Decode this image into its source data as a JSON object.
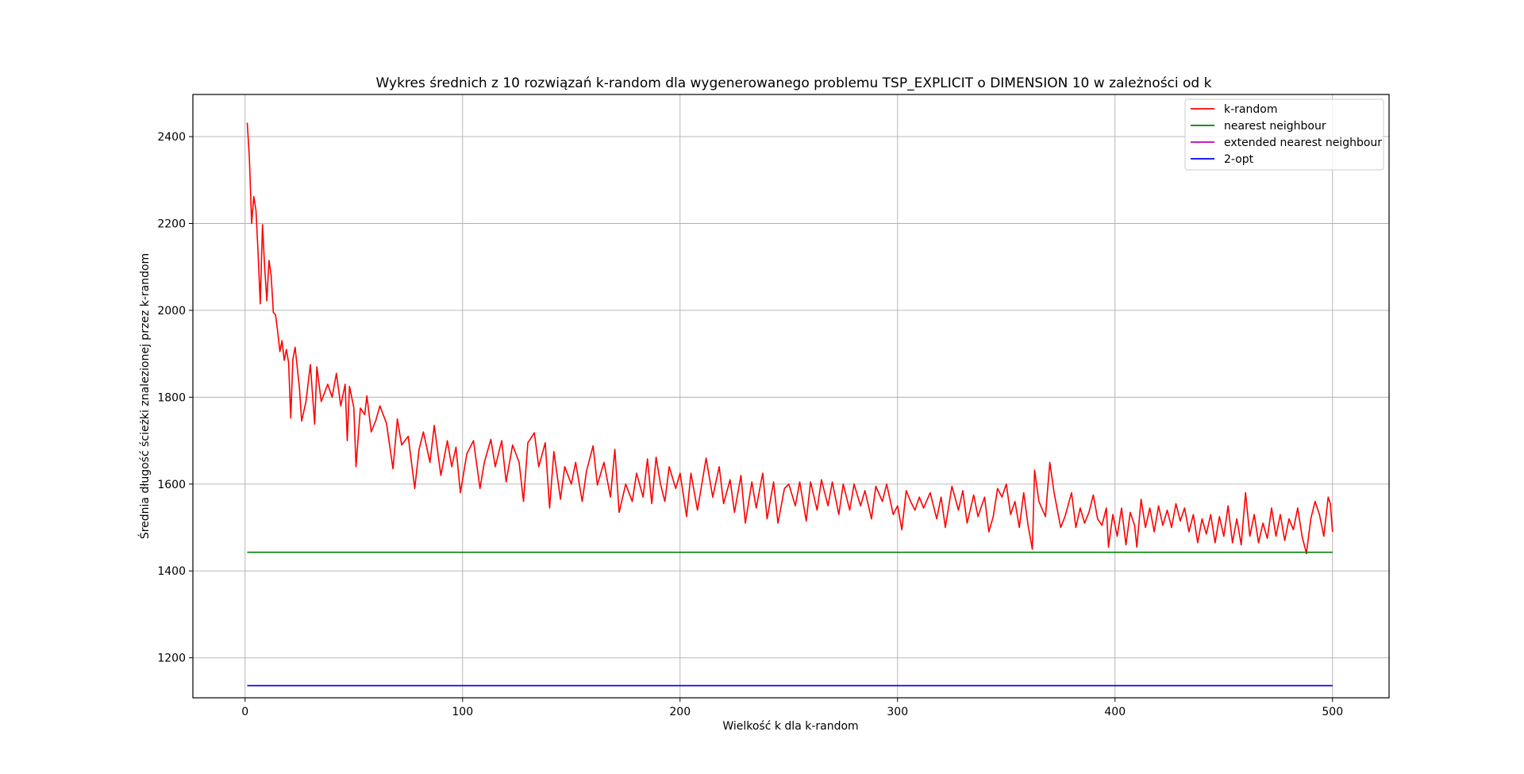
{
  "chart_data": {
    "type": "line",
    "title": "Wykres średnich z 10 rozwiązań k-random dla wygenerowanego problemu TSP_EXPLICIT o DIMENSION 10 w zależności od k",
    "xlabel": "Wielkość k dla k-random",
    "ylabel": "Średnia długość ścieżki znalezionej przez k-random",
    "xlim": [
      -24,
      526
    ],
    "ylim": [
      1108,
      2497
    ],
    "xticks": [
      0,
      100,
      200,
      300,
      400,
      500
    ],
    "yticks": [
      1200,
      1400,
      1600,
      1800,
      2000,
      2200,
      2400
    ],
    "grid": true,
    "legend_position": "top-right",
    "series": [
      {
        "name": "k-random",
        "color": "#ff0000",
        "x_start": 1,
        "x_end": 500,
        "anchors": [
          [
            1,
            2432
          ],
          [
            2,
            2350
          ],
          [
            3,
            2200
          ],
          [
            4,
            2262
          ],
          [
            5,
            2230
          ],
          [
            6,
            2130
          ],
          [
            7,
            2015
          ],
          [
            8,
            2197
          ],
          [
            9,
            2100
          ],
          [
            10,
            2022
          ],
          [
            11,
            2115
          ],
          [
            12,
            2080
          ],
          [
            13,
            1995
          ],
          [
            14,
            1990
          ],
          [
            15,
            1950
          ],
          [
            16,
            1905
          ],
          [
            17,
            1930
          ],
          [
            18,
            1885
          ],
          [
            19,
            1910
          ],
          [
            20,
            1880
          ],
          [
            21,
            1752
          ],
          [
            22,
            1888
          ],
          [
            23,
            1915
          ],
          [
            25,
            1820
          ],
          [
            26,
            1745
          ],
          [
            28,
            1790
          ],
          [
            30,
            1875
          ],
          [
            32,
            1738
          ],
          [
            33,
            1870
          ],
          [
            35,
            1790
          ],
          [
            38,
            1830
          ],
          [
            40,
            1800
          ],
          [
            42,
            1855
          ],
          [
            44,
            1780
          ],
          [
            46,
            1830
          ],
          [
            47,
            1700
          ],
          [
            48,
            1825
          ],
          [
            50,
            1775
          ],
          [
            51,
            1640
          ],
          [
            53,
            1775
          ],
          [
            55,
            1760
          ],
          [
            56,
            1803
          ],
          [
            58,
            1720
          ],
          [
            60,
            1745
          ],
          [
            62,
            1780
          ],
          [
            65,
            1740
          ],
          [
            68,
            1635
          ],
          [
            70,
            1750
          ],
          [
            72,
            1690
          ],
          [
            75,
            1710
          ],
          [
            78,
            1590
          ],
          [
            80,
            1680
          ],
          [
            82,
            1720
          ],
          [
            85,
            1650
          ],
          [
            87,
            1735
          ],
          [
            90,
            1620
          ],
          [
            93,
            1700
          ],
          [
            95,
            1640
          ],
          [
            97,
            1685
          ],
          [
            99,
            1580
          ],
          [
            102,
            1670
          ],
          [
            105,
            1700
          ],
          [
            108,
            1590
          ],
          [
            110,
            1650
          ],
          [
            113,
            1703
          ],
          [
            115,
            1640
          ],
          [
            118,
            1700
          ],
          [
            120,
            1605
          ],
          [
            123,
            1690
          ],
          [
            126,
            1650
          ],
          [
            128,
            1560
          ],
          [
            130,
            1695
          ],
          [
            133,
            1718
          ],
          [
            135,
            1640
          ],
          [
            138,
            1695
          ],
          [
            140,
            1545
          ],
          [
            142,
            1675
          ],
          [
            145,
            1565
          ],
          [
            147,
            1640
          ],
          [
            150,
            1600
          ],
          [
            152,
            1650
          ],
          [
            155,
            1560
          ],
          [
            157,
            1630
          ],
          [
            160,
            1688
          ],
          [
            162,
            1598
          ],
          [
            165,
            1650
          ],
          [
            168,
            1570
          ],
          [
            170,
            1680
          ],
          [
            172,
            1535
          ],
          [
            175,
            1600
          ],
          [
            178,
            1560
          ],
          [
            180,
            1625
          ],
          [
            183,
            1570
          ],
          [
            185,
            1658
          ],
          [
            187,
            1555
          ],
          [
            189,
            1662
          ],
          [
            191,
            1600
          ],
          [
            193,
            1560
          ],
          [
            195,
            1640
          ],
          [
            198,
            1590
          ],
          [
            200,
            1625
          ],
          [
            203,
            1525
          ],
          [
            205,
            1625
          ],
          [
            208,
            1540
          ],
          [
            210,
            1600
          ],
          [
            212,
            1660
          ],
          [
            215,
            1570
          ],
          [
            218,
            1640
          ],
          [
            220,
            1555
          ],
          [
            223,
            1610
          ],
          [
            225,
            1535
          ],
          [
            228,
            1620
          ],
          [
            230,
            1510
          ],
          [
            233,
            1605
          ],
          [
            235,
            1545
          ],
          [
            238,
            1625
          ],
          [
            240,
            1520
          ],
          [
            243,
            1605
          ],
          [
            245,
            1510
          ],
          [
            248,
            1590
          ],
          [
            250,
            1600
          ],
          [
            253,
            1550
          ],
          [
            255,
            1605
          ],
          [
            258,
            1515
          ],
          [
            260,
            1605
          ],
          [
            263,
            1540
          ],
          [
            265,
            1610
          ],
          [
            268,
            1550
          ],
          [
            270,
            1605
          ],
          [
            273,
            1530
          ],
          [
            275,
            1600
          ],
          [
            278,
            1540
          ],
          [
            280,
            1600
          ],
          [
            283,
            1550
          ],
          [
            285,
            1585
          ],
          [
            288,
            1520
          ],
          [
            290,
            1595
          ],
          [
            293,
            1560
          ],
          [
            295,
            1600
          ],
          [
            298,
            1530
          ],
          [
            300,
            1550
          ],
          [
            302,
            1495
          ],
          [
            304,
            1585
          ],
          [
            306,
            1560
          ],
          [
            308,
            1540
          ],
          [
            310,
            1570
          ],
          [
            312,
            1545
          ],
          [
            315,
            1580
          ],
          [
            318,
            1520
          ],
          [
            320,
            1570
          ],
          [
            322,
            1500
          ],
          [
            325,
            1595
          ],
          [
            328,
            1540
          ],
          [
            330,
            1585
          ],
          [
            332,
            1510
          ],
          [
            335,
            1575
          ],
          [
            337,
            1525
          ],
          [
            340,
            1570
          ],
          [
            342,
            1490
          ],
          [
            344,
            1525
          ],
          [
            346,
            1590
          ],
          [
            348,
            1570
          ],
          [
            350,
            1600
          ],
          [
            352,
            1530
          ],
          [
            354,
            1560
          ],
          [
            356,
            1500
          ],
          [
            358,
            1580
          ],
          [
            360,
            1505
          ],
          [
            362,
            1450
          ],
          [
            363,
            1632
          ],
          [
            365,
            1560
          ],
          [
            368,
            1525
          ],
          [
            370,
            1650
          ],
          [
            372,
            1580
          ],
          [
            375,
            1500
          ],
          [
            377,
            1525
          ],
          [
            380,
            1580
          ],
          [
            382,
            1500
          ],
          [
            384,
            1545
          ],
          [
            386,
            1510
          ],
          [
            388,
            1535
          ],
          [
            390,
            1575
          ],
          [
            392,
            1520
          ],
          [
            394,
            1505
          ],
          [
            396,
            1545
          ],
          [
            397,
            1455
          ],
          [
            399,
            1530
          ],
          [
            401,
            1480
          ],
          [
            403,
            1545
          ],
          [
            405,
            1460
          ],
          [
            407,
            1535
          ],
          [
            409,
            1505
          ],
          [
            410,
            1455
          ],
          [
            412,
            1565
          ],
          [
            414,
            1500
          ],
          [
            416,
            1545
          ],
          [
            418,
            1490
          ],
          [
            420,
            1550
          ],
          [
            422,
            1505
          ],
          [
            424,
            1540
          ],
          [
            426,
            1500
          ],
          [
            428,
            1555
          ],
          [
            430,
            1515
          ],
          [
            432,
            1545
          ],
          [
            434,
            1490
          ],
          [
            436,
            1530
          ],
          [
            438,
            1465
          ],
          [
            440,
            1520
          ],
          [
            442,
            1485
          ],
          [
            444,
            1530
          ],
          [
            446,
            1465
          ],
          [
            448,
            1525
          ],
          [
            450,
            1480
          ],
          [
            452,
            1550
          ],
          [
            454,
            1465
          ],
          [
            456,
            1520
          ],
          [
            458,
            1460
          ],
          [
            460,
            1580
          ],
          [
            462,
            1480
          ],
          [
            464,
            1530
          ],
          [
            466,
            1465
          ],
          [
            468,
            1510
          ],
          [
            470,
            1475
          ],
          [
            472,
            1545
          ],
          [
            474,
            1480
          ],
          [
            476,
            1530
          ],
          [
            478,
            1470
          ],
          [
            480,
            1520
          ],
          [
            482,
            1495
          ],
          [
            484,
            1545
          ],
          [
            486,
            1480
          ],
          [
            488,
            1440
          ],
          [
            490,
            1520
          ],
          [
            492,
            1560
          ],
          [
            494,
            1530
          ],
          [
            496,
            1480
          ],
          [
            498,
            1570
          ],
          [
            499,
            1555
          ],
          [
            500,
            1490
          ]
        ]
      },
      {
        "name": "nearest neighbour",
        "color": "#008000",
        "x": [
          1,
          500
        ],
        "values": [
          1443,
          1443
        ]
      },
      {
        "name": "extended nearest neighbour",
        "color": "#bf00bf",
        "x": [
          1,
          500
        ],
        "values": [
          1136,
          1136
        ]
      },
      {
        "name": "2-opt",
        "color": "#0000ff",
        "x": [
          1,
          500
        ],
        "values": [
          1136,
          1136
        ]
      }
    ]
  }
}
